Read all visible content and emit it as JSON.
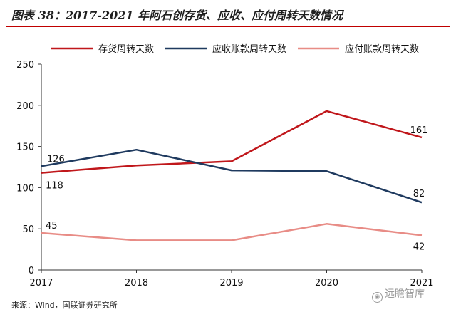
{
  "header": {
    "title": "图表 38：2017-2021 年阿石创存货、应收、应付周转天数情况"
  },
  "footer": {
    "source": "来源：Wind，国联证券研究所",
    "watermark": "远瞻智库"
  },
  "chart_data": {
    "type": "line",
    "title": "",
    "xlabel": "",
    "ylabel": "",
    "categories": [
      "2017",
      "2018",
      "2019",
      "2020",
      "2021"
    ],
    "ylim": [
      0,
      250
    ],
    "yticks": [
      0,
      50,
      100,
      150,
      200,
      250
    ],
    "grid": false,
    "legend_position": "top",
    "series": [
      {
        "name": "存货周转天数",
        "color": "#c0171b",
        "values": [
          118,
          127,
          132,
          193,
          161
        ],
        "labels": {
          "0": "118",
          "4": "161"
        }
      },
      {
        "name": "应收账款周转天数",
        "color": "#1f3a5f",
        "values": [
          126,
          146,
          121,
          120,
          82
        ],
        "labels": {
          "0": "126",
          "4": "82"
        }
      },
      {
        "name": "应付账款周转天数",
        "color": "#e88c86",
        "values": [
          45,
          36,
          36,
          56,
          42
        ],
        "labels": {
          "0": "45",
          "4": "42"
        }
      }
    ]
  }
}
